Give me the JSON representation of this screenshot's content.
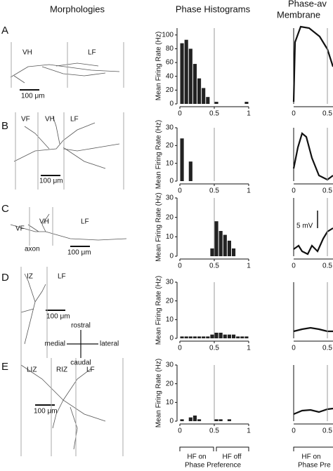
{
  "headers": {
    "morphologies": "Morphologies",
    "histograms": "Phase Histograms",
    "average_1": "Phase-av",
    "average_2": "Membrane"
  },
  "panels": [
    {
      "letter": "A",
      "labels": [
        "VH",
        "LF"
      ],
      "scale": "100 μm"
    },
    {
      "letter": "B",
      "labels": [
        "VF",
        "VH",
        "LF"
      ],
      "scale": "100 μm"
    },
    {
      "letter": "C",
      "labels": [
        "VF",
        "VH",
        "LF",
        "axon"
      ],
      "scale": "100 μm"
    },
    {
      "letter": "D",
      "labels": [
        "IZ",
        "LF",
        "rostral",
        "medial",
        "lateral",
        "caudal"
      ],
      "scale": "100 μm"
    },
    {
      "letter": "E",
      "labels": [
        "LIZ",
        "RIZ",
        "LF"
      ],
      "scale": "100 μm"
    }
  ],
  "bottom": {
    "hf_on": "HF on",
    "hf_off": "HF off",
    "phase_preference": "Phase Preference",
    "right_hf_on": "HF on",
    "right_phase": "Phase Pre"
  },
  "trace": {
    "ticks": [
      "0",
      "0.5"
    ],
    "scale_bar": "5 mV"
  },
  "chart_data": [
    {
      "type": "histogram",
      "ylabel": "Mean Firing Rate (Hz)",
      "color": "#222",
      "bins": [
        0,
        0.0625,
        0.125,
        0.1875,
        0.25,
        0.3125,
        0.375,
        0.4375,
        0.5,
        0.5625,
        0.625,
        0.6875,
        0.75,
        0.8125,
        0.875,
        0.9375,
        1
      ],
      "values": [
        88,
        93,
        80,
        58,
        37,
        23,
        10,
        0,
        3,
        0,
        0,
        0,
        0,
        0,
        0,
        3
      ],
      "xlim": [
        0,
        1
      ],
      "xticks": [
        0,
        0.5,
        1
      ],
      "ylim": [
        0,
        110
      ],
      "yticks": [
        0,
        20,
        40,
        60,
        80,
        100
      ]
    },
    {
      "type": "histogram",
      "ylabel": "Mean Firing Rate (Hz)",
      "color": "#222",
      "bins": [
        0,
        0.0625,
        0.125,
        0.1875,
        0.25,
        0.3125,
        0.375,
        0.4375,
        0.5,
        0.5625,
        0.625,
        0.6875,
        0.75,
        0.8125,
        0.875,
        0.9375,
        1
      ],
      "values": [
        24,
        0,
        11,
        0,
        0,
        0,
        0,
        0,
        0,
        0,
        0,
        0,
        0,
        0,
        0,
        0
      ],
      "xlim": [
        0,
        1
      ],
      "xticks": [
        0,
        0.5,
        1
      ],
      "ylim": [
        0,
        30
      ],
      "yticks": [
        0,
        10,
        20,
        30
      ]
    },
    {
      "type": "histogram",
      "ylabel": "Mean Firing Rate (Hz)",
      "color": "#222",
      "bins": [
        0,
        0.0625,
        0.125,
        0.1875,
        0.25,
        0.3125,
        0.375,
        0.4375,
        0.5,
        0.5625,
        0.625,
        0.6875,
        0.75,
        0.8125,
        0.875,
        0.9375,
        1
      ],
      "values": [
        0,
        0,
        0,
        0,
        0,
        0,
        0,
        4,
        18,
        13,
        11,
        8,
        4,
        0,
        0,
        0
      ],
      "xlim": [
        0,
        1
      ],
      "xticks": [
        0,
        0.5,
        1
      ],
      "ylim": [
        0,
        30
      ],
      "yticks": [
        0,
        10,
        20,
        30
      ]
    },
    {
      "type": "histogram",
      "ylabel": "Mean Firing Rate (Hz)",
      "color": "#222",
      "bins": [
        0,
        0.0625,
        0.125,
        0.1875,
        0.25,
        0.3125,
        0.375,
        0.4375,
        0.5,
        0.5625,
        0.625,
        0.6875,
        0.75,
        0.8125,
        0.875,
        0.9375,
        1
      ],
      "values": [
        1,
        1,
        1,
        1,
        1,
        1,
        1,
        2,
        3,
        3,
        2,
        2,
        2,
        1,
        1,
        1
      ],
      "xlim": [
        0,
        1
      ],
      "xticks": [
        0,
        0.5,
        1
      ],
      "ylim": [
        0,
        30
      ],
      "yticks": [
        0,
        10,
        20,
        30
      ]
    },
    {
      "type": "histogram",
      "ylabel": "Mean Firing Rate (Hz)",
      "color": "#222",
      "bins": [
        0,
        0.0625,
        0.125,
        0.1875,
        0.25,
        0.3125,
        0.375,
        0.4375,
        0.5,
        0.5625,
        0.625,
        0.6875,
        0.75,
        0.8125,
        0.875,
        0.9375,
        1
      ],
      "values": [
        1,
        0,
        2,
        3,
        1,
        0,
        0,
        0,
        1,
        1,
        0,
        1,
        0,
        0,
        0,
        0
      ],
      "xlim": [
        0,
        1
      ],
      "xticks": [
        0,
        0.5,
        1
      ],
      "ylim": [
        0,
        30
      ],
      "yticks": [
        0,
        10,
        20,
        30
      ]
    }
  ]
}
